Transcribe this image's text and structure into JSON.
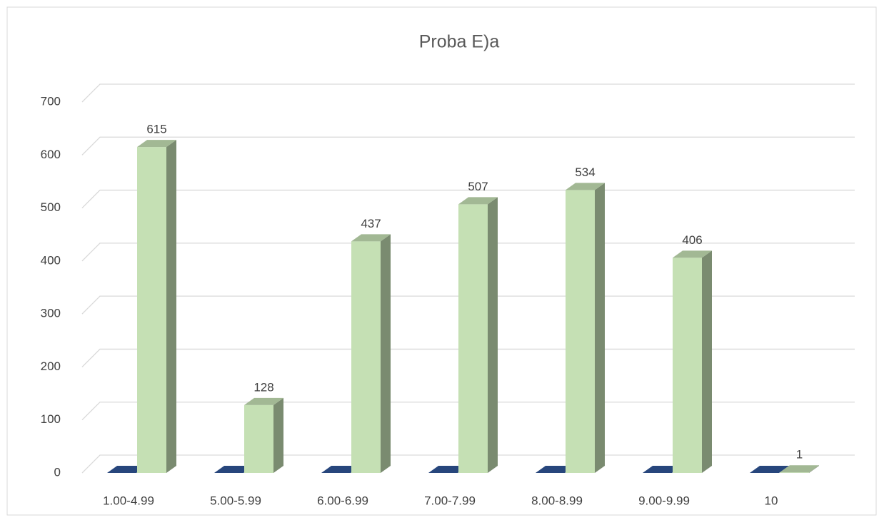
{
  "chart_data": {
    "type": "bar3d",
    "title": "Proba E)a",
    "categories": [
      "1.00-4.99",
      "5.00-5.99",
      "6.00-6.99",
      "7.00-7.99",
      "8.00-8.99",
      "9.00-9.99",
      "10"
    ],
    "series": [
      {
        "color": "#2f5597",
        "values": [
          0,
          0,
          0,
          0,
          0,
          0,
          0
        ]
      },
      {
        "color": "#c5e0b4",
        "values": [
          615,
          128,
          437,
          507,
          534,
          406,
          1
        ]
      }
    ],
    "ylim": [
      0,
      700
    ],
    "yticks": [
      0,
      100,
      200,
      300,
      400,
      500,
      600,
      700
    ],
    "grid": true
  }
}
